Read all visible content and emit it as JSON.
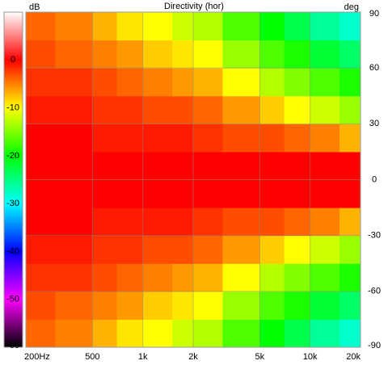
{
  "chart_data": {
    "type": "heatmap",
    "title": "Directivity (hor)",
    "x_bins": [
      200,
      300,
      500,
      700,
      1000,
      1500,
      2000,
      3000,
      5000,
      7000,
      10000,
      15000,
      20000
    ],
    "y_bins": [
      -90,
      -75,
      -60,
      -45,
      -30,
      -15,
      0,
      15,
      30,
      45,
      60,
      75,
      90
    ],
    "z": [
      [
        -4,
        -5,
        -7,
        -9,
        -10,
        -12,
        -13,
        -17,
        -20,
        -23,
        -26,
        -28
      ],
      [
        -3,
        -4,
        -5,
        -6,
        -8,
        -9,
        -10,
        -14,
        -17,
        -19,
        -22,
        -24
      ],
      [
        -2,
        -2,
        -3,
        -4,
        -5,
        -6,
        -7,
        -10,
        -13,
        -15,
        -17,
        -19
      ],
      [
        -1,
        -1,
        -2,
        -2,
        -3,
        -3,
        -4,
        -6,
        -8,
        -10,
        -12,
        -14
      ],
      [
        0,
        0,
        -1,
        -1,
        -1,
        -1,
        -2,
        -3,
        -3,
        -4,
        -5,
        -7
      ],
      [
        0,
        0,
        0,
        0,
        0,
        0,
        0,
        0,
        0,
        0,
        0,
        0
      ],
      [
        0,
        0,
        0,
        0,
        0,
        0,
        0,
        0,
        0,
        0,
        0,
        0
      ],
      [
        0,
        0,
        -1,
        -1,
        -1,
        -1,
        -2,
        -3,
        -3,
        -4,
        -5,
        -7
      ],
      [
        -1,
        -1,
        -2,
        -2,
        -3,
        -3,
        -4,
        -6,
        -8,
        -10,
        -12,
        -14
      ],
      [
        -2,
        -2,
        -3,
        -4,
        -5,
        -6,
        -7,
        -10,
        -13,
        -15,
        -17,
        -19
      ],
      [
        -3,
        -4,
        -5,
        -6,
        -8,
        -9,
        -10,
        -14,
        -17,
        -19,
        -22,
        -24
      ],
      [
        -4,
        -5,
        -7,
        -9,
        -10,
        -12,
        -13,
        -17,
        -20,
        -23,
        -26,
        -28
      ]
    ],
    "xlim": [
      200,
      20000
    ],
    "log_x": true,
    "xticks": [
      {
        "value": 200,
        "label": "200Hz"
      },
      {
        "value": 500,
        "label": "500"
      },
      {
        "value": 1000,
        "label": "1k"
      },
      {
        "value": 2000,
        "label": "2k"
      },
      {
        "value": 5000,
        "label": "5k"
      },
      {
        "value": 10000,
        "label": "10k"
      },
      {
        "value": 20000,
        "label": "20k"
      }
    ],
    "ylim": [
      -90,
      90
    ],
    "yticks": [
      90,
      60,
      30,
      0,
      -30,
      -60,
      -90
    ],
    "ylabel": "deg",
    "zlim": [
      -60,
      10
    ],
    "zticks": [
      0,
      -10,
      -20,
      -30,
      -40,
      -50,
      -60
    ],
    "zlabel": "dB",
    "colorscale": [
      [
        10,
        "#ffffff"
      ],
      [
        0,
        "#ff0000"
      ],
      [
        -5,
        "#ff8000"
      ],
      [
        -10,
        "#ffff00"
      ],
      [
        -20,
        "#00ff00"
      ],
      [
        -30,
        "#00ffff"
      ],
      [
        -40,
        "#0000ff"
      ],
      [
        -50,
        "#ff00ff"
      ],
      [
        -60,
        "#000000"
      ]
    ],
    "grid": true
  }
}
